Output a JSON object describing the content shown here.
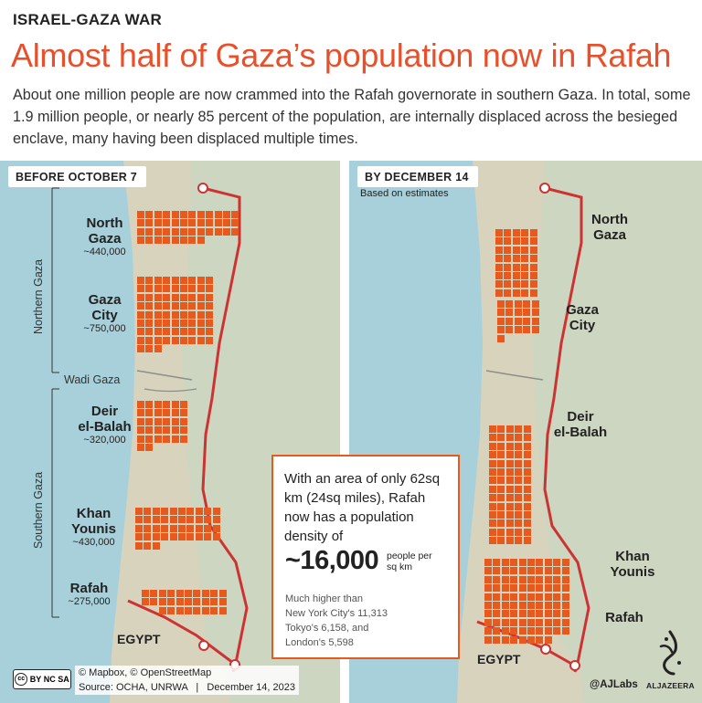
{
  "kicker": "ISRAEL-GAZA WAR",
  "headline": "Almost half of Gaza’s population now in Rafah",
  "deck": "About one million people are now crammed into the Rafah governorate in southern Gaza. In total, some 1.9 million people, or nearly 85 percent of the population, are internally displaced across the besieged enclave, many having been displaced multiple times.",
  "left_panel": {
    "label": "BEFORE OCTOBER 7",
    "northern_label": "Northern Gaza",
    "southern_label": "Southern Gaza",
    "wadi_label": "Wadi Gaza",
    "egypt_label": "EGYPT",
    "areas": [
      {
        "name": "North Gaza",
        "name_line1": "North",
        "name_line2": "Gaza",
        "population": "~440,000",
        "squares": 44
      },
      {
        "name": "Gaza City",
        "name_line1": "Gaza",
        "name_line2": "City",
        "population": "~750,000",
        "squares": 75
      },
      {
        "name": "Deir el-Balah",
        "name_line1": "Deir",
        "name_line2": "el-Balah",
        "population": "~320,000",
        "squares": 32
      },
      {
        "name": "Khan Younis",
        "name_line1": "Khan",
        "name_line2": "Younis",
        "population": "~430,000",
        "squares": 43
      },
      {
        "name": "Rafah",
        "name_line1": "Rafah",
        "name_line2": "",
        "population": "~275,000",
        "squares": 28
      }
    ]
  },
  "right_panel": {
    "label": "BY DECEMBER 14",
    "note": "Based on estimates",
    "egypt_label": "EGYPT",
    "areas": [
      {
        "name_line1": "North",
        "name_line2": "Gaza",
        "squares": 40
      },
      {
        "name_line1": "Gaza",
        "name_line2": "City",
        "squares": 21
      },
      {
        "name_line1": "Deir",
        "name_line2": "el-Balah",
        "squares": 70
      },
      {
        "name_line1": "Khan",
        "name_line2": "Younis",
        "squares": 0
      },
      {
        "name_line1": "Rafah",
        "name_line2": "",
        "squares": 98
      }
    ]
  },
  "infobox": {
    "main_text": "With an area of only 62sq km (24sq miles), Rafah now has a population density of",
    "density_value": "~16,000",
    "density_unit_line1": "people per",
    "density_unit_line2": "sq km",
    "comparison_line1": "Much higher than",
    "comparison_line2": "New York City's 11,313",
    "comparison_line3": "Tokyo's 6,158, and",
    "comparison_line4": "London's 5,598"
  },
  "credits": {
    "line1": "© Mapbox, © OpenStreetMap",
    "line2": "Source: OCHA, UNRWA   |   December 14, 2023",
    "license": [
      "cc",
      "BY",
      "NC",
      "SA"
    ]
  },
  "handle": "@AJLabs",
  "logo_text": "ALJAZEERA",
  "colors": {
    "accent": "#e8502b",
    "square": "#e8591d",
    "border_line": "#cc3333",
    "sea": "#a8d0db",
    "land": "#d8d3bd"
  }
}
